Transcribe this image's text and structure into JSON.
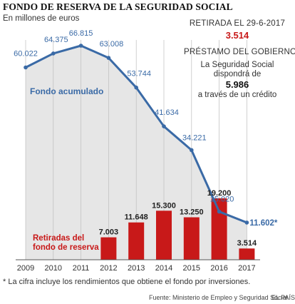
{
  "header": {
    "title": "FONDO DE RESERVA DE LA SEGURIDAD SOCIAL",
    "subtitle": "En millones de euros"
  },
  "info_box": {
    "withdrawal_label": "RETIRADA EL 29-6-2017",
    "withdrawal_value": "3.514",
    "loan_label": "PRÉSTAMO DEL GOBIERNO",
    "loan_line1": "La Seguridad Social",
    "loan_line2": "dispondrá de",
    "loan_value": "5.986",
    "loan_line3": "a través de un crédito"
  },
  "footnote": "* La cifra incluye los rendimientos que obtiene el fondo por inversiones.",
  "source": "Fuente: Ministerio de Empleo y Seguridad Social.",
  "brand": "EL PAÍS",
  "colors": {
    "line": "#3a6aa6",
    "bar": "#c81919",
    "area": "#e6e6e6",
    "text": "#333333"
  },
  "chart_data": {
    "type": "bar+line",
    "categories": [
      "2009",
      "2010",
      "2011",
      "2012",
      "2013",
      "2014",
      "2015",
      "2016",
      "2017"
    ],
    "series": [
      {
        "name": "Fondo acumulado",
        "type": "line",
        "values": [
          60022,
          64375,
          66815,
          63008,
          53744,
          41634,
          34221,
          15020,
          11602
        ],
        "labels": [
          "60.022",
          "64.375",
          "66.815",
          "63.008",
          "53.744",
          "41.634",
          "34.221",
          "15.020",
          "11.602*"
        ]
      },
      {
        "name": "Retiradas del fondo de reserva",
        "name_lines": [
          "Retiradas del",
          "fondo de reserva"
        ],
        "type": "bar",
        "values": [
          null,
          null,
          null,
          7003,
          11648,
          15300,
          13250,
          19200,
          3514
        ],
        "labels": [
          "",
          "",
          "",
          "7.003",
          "11.648",
          "15.300",
          "13.250",
          "19.200",
          "3.514"
        ]
      }
    ],
    "xlabel": "",
    "ylabel": "",
    "ylim": [
      0,
      70000
    ],
    "grid": true,
    "legend": "inline labels"
  }
}
